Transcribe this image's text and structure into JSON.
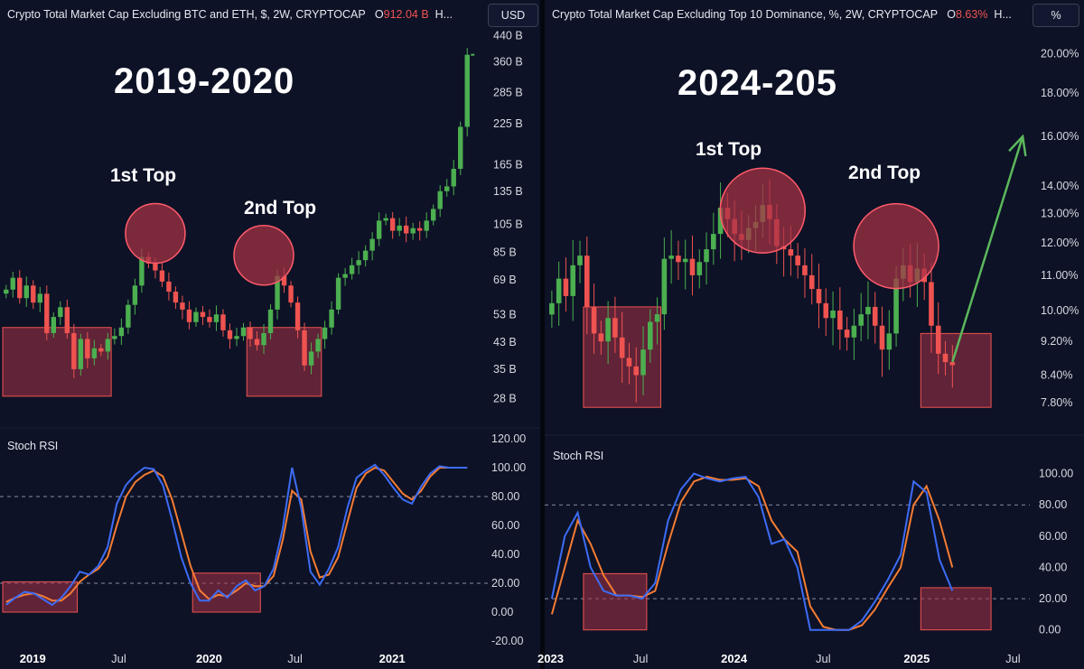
{
  "colors": {
    "background": "#0d1226",
    "candle_up": "#4caf50",
    "candle_down": "#ef5350",
    "stoch_k": "#3d6cf5",
    "stoch_d": "#f57c33",
    "highlight_fill": "#a83245",
    "arrow": "#5cb85c"
  },
  "left_panel": {
    "header_title": "Crypto Total Market Cap Excluding BTC and ETH, $, 2W, CRYPTOCAP",
    "header_o_label": "O",
    "header_o_value": "912.04 B",
    "header_more": "H...",
    "unit_button": "USD",
    "big_title": "2019-2020",
    "annotations": [
      "1st Top",
      "2nd Top"
    ],
    "rsi_label": "Stoch RSI"
  },
  "right_panel": {
    "header_title": "Crypto Total Market Cap Excluding Top 10 Dominance, %, 2W, CRYPTOCAP",
    "header_o_label": "O",
    "header_o_value": "8.63%",
    "header_more": "H...",
    "unit_button": "%",
    "big_title": "2024-205",
    "annotations": [
      "1st Top",
      "2nd Top"
    ],
    "rsi_label": "Stoch RSI"
  },
  "chart_data": [
    {
      "type": "candlestick",
      "title": "Crypto Total Market Cap Excluding BTC and ETH, $, 2W, CRYPTOCAP",
      "log_scale": true,
      "ylim": [
        25,
        450
      ],
      "y_ticks": [
        {
          "value": 440,
          "label": "440 B"
        },
        {
          "value": 360,
          "label": "360 B"
        },
        {
          "value": 285,
          "label": "285 B"
        },
        {
          "value": 225,
          "label": "225 B"
        },
        {
          "value": 165,
          "label": "165 B"
        },
        {
          "value": 135,
          "label": "135 B"
        },
        {
          "value": 105,
          "label": "105 B"
        },
        {
          "value": 85,
          "label": "85 B"
        },
        {
          "value": 69,
          "label": "69 B"
        },
        {
          "value": 53,
          "label": "53 B"
        },
        {
          "value": 43,
          "label": "43 B"
        },
        {
          "value": 35,
          "label": "35 B"
        },
        {
          "value": 28,
          "label": "28 B"
        }
      ],
      "x_ticks": [
        {
          "label": "2019",
          "bold": true,
          "index": 4
        },
        {
          "label": "Jul",
          "bold": false,
          "index": 17
        },
        {
          "label": "2020",
          "bold": true,
          "index": 30
        },
        {
          "label": "Jul",
          "bold": false,
          "index": 43
        },
        {
          "label": "2021",
          "bold": true,
          "index": 57
        }
      ],
      "close": [
        64,
        70,
        60,
        66,
        58,
        62,
        46,
        52,
        56,
        46,
        35,
        44,
        38,
        41,
        40,
        44,
        45,
        48,
        57,
        66,
        82,
        78,
        74,
        68,
        63,
        58,
        55,
        50,
        54,
        52,
        50,
        53,
        47,
        44,
        45,
        48,
        44,
        42,
        46,
        55,
        71,
        66,
        58,
        47,
        36,
        40,
        44,
        48,
        55,
        70,
        72,
        77,
        80,
        86,
        94,
        108,
        110,
        100,
        104,
        98,
        102,
        100,
        108,
        118,
        135,
        140,
        160,
        220,
        380
      ],
      "stoch_rsi": {
        "ylim": [
          -25,
          125
        ],
        "y_ticks": [
          120,
          100,
          80,
          60,
          40,
          20,
          0,
          -20
        ],
        "y_tick_labels": [
          "120.00",
          "100.00",
          "80.00",
          "60.00",
          "40.00",
          "20.00",
          "0.00",
          "-20.00"
        ],
        "bands": [
          80,
          20
        ],
        "k": [
          5,
          10,
          14,
          13,
          9,
          5,
          10,
          18,
          28,
          26,
          32,
          45,
          75,
          88,
          95,
          100,
          99,
          88,
          64,
          38,
          20,
          8,
          8,
          15,
          10,
          18,
          22,
          15,
          18,
          30,
          58,
          100,
          72,
          28,
          19,
          30,
          45,
          72,
          93,
          98,
          102,
          95,
          86,
          78,
          75,
          87,
          96,
          101,
          100,
          100,
          100
        ],
        "d": [
          7,
          10,
          12,
          13,
          11,
          8,
          8,
          13,
          21,
          26,
          30,
          38,
          60,
          80,
          90,
          95,
          98,
          94,
          78,
          55,
          32,
          15,
          9,
          12,
          11,
          15,
          20,
          18,
          18,
          25,
          50,
          84,
          78,
          42,
          24,
          26,
          38,
          62,
          86,
          96,
          100,
          98,
          90,
          82,
          78,
          84,
          94,
          100,
          100,
          100,
          100
        ]
      }
    },
    {
      "type": "candlestick",
      "title": "Crypto Total Market Cap Excluding Top 10 Dominance, %, 2W, CRYPTOCAP",
      "log_scale": true,
      "ylim": [
        7.5,
        21.5
      ],
      "y_ticks": [
        {
          "value": 20,
          "label": "20.00%"
        },
        {
          "value": 18,
          "label": "18.00%"
        },
        {
          "value": 16,
          "label": "16.00%"
        },
        {
          "value": 14,
          "label": "14.00%"
        },
        {
          "value": 13,
          "label": "13.00%"
        },
        {
          "value": 12,
          "label": "12.00%"
        },
        {
          "value": 11,
          "label": "11.00%"
        },
        {
          "value": 10,
          "label": "10.00%"
        },
        {
          "value": 9.2,
          "label": "9.20%"
        },
        {
          "value": 8.4,
          "label": "8.40%"
        },
        {
          "value": 7.8,
          "label": "7.80%"
        }
      ],
      "x_ticks": [
        {
          "label": "2023",
          "bold": true,
          "index": -1
        },
        {
          "label": "Jul",
          "bold": false,
          "index": 13
        },
        {
          "label": "2024",
          "bold": true,
          "index": 26
        },
        {
          "label": "Jul",
          "bold": false,
          "index": 39
        },
        {
          "label": "2025",
          "bold": true,
          "index": 52
        },
        {
          "label": "Jul",
          "bold": false,
          "index": 66
        }
      ],
      "close": [
        10.2,
        10.9,
        10.4,
        11.3,
        11.6,
        10.1,
        9.4,
        9.2,
        9.8,
        9.3,
        8.8,
        8.6,
        8.4,
        9.0,
        9.7,
        9.9,
        11.5,
        11.6,
        11.4,
        11.5,
        11.0,
        11.4,
        11.8,
        12.3,
        13.2,
        12.8,
        12.3,
        12.1,
        12.5,
        12.7,
        13.3,
        12.8,
        11.9,
        11.8,
        11.6,
        11.3,
        11.0,
        10.6,
        10.2,
        9.8,
        10.0,
        9.5,
        9.3,
        9.6,
        9.9,
        10.1,
        9.6,
        9.0,
        9.4,
        10.9,
        11.3,
        10.8,
        11.2,
        10.8,
        9.6,
        8.9,
        8.7,
        8.63
      ],
      "arrow_target": 16.0,
      "stoch_rsi": {
        "ylim": [
          -10,
          120
        ],
        "y_ticks": [
          100,
          80,
          60,
          40,
          20,
          0
        ],
        "y_tick_labels": [
          "100.00",
          "80.00",
          "60.00",
          "40.00",
          "20.00",
          "0.00"
        ],
        "bands": [
          80,
          20
        ],
        "k": [
          20,
          60,
          75,
          40,
          25,
          22,
          22,
          20,
          30,
          70,
          90,
          100,
          97,
          95,
          97,
          98,
          85,
          55,
          58,
          40,
          0,
          0,
          0,
          0,
          6,
          18,
          32,
          48,
          95,
          88,
          45,
          25
        ],
        "d": [
          10,
          40,
          70,
          55,
          35,
          22,
          22,
          21,
          25,
          55,
          82,
          95,
          98,
          96,
          96,
          97,
          92,
          70,
          58,
          50,
          15,
          2,
          0,
          0,
          3,
          13,
          27,
          40,
          80,
          92,
          70,
          40
        ]
      }
    }
  ]
}
